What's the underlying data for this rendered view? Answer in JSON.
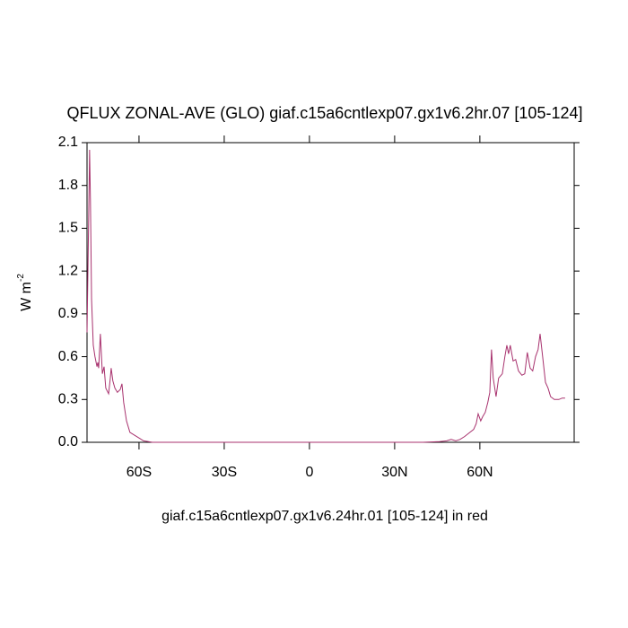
{
  "chart_data": {
    "type": "line",
    "title": "QFLUX ZONAL-AVE (GLO) giaf.c15a6cntlexp07.gx1v6.2hr.07 [105-124]",
    "xlabel": "giaf.c15a6cntlexp07.gx1v6.24hr.01 [105-124] in red",
    "ylabel": {
      "text": "W m",
      "superscript": "-2"
    },
    "xlim": [
      -78.3,
      93.2
    ],
    "ylim": [
      0,
      2.1
    ],
    "xticks": [
      {
        "value": -60,
        "label": "60S"
      },
      {
        "value": -30,
        "label": "30S"
      },
      0,
      {
        "value": 30,
        "label": "30N"
      },
      {
        "value": 60,
        "label": "60N"
      }
    ],
    "yticks": [
      {
        "value": 0,
        "label": "0.0"
      },
      0.3,
      0.6,
      0.9,
      1.2,
      1.5,
      1.8,
      2.1
    ],
    "series": [
      {
        "color": "#a8326e",
        "x": [
          -78.3,
          -77.7,
          -77.4,
          -77.1,
          -76.7,
          -76.1,
          -75.5,
          -74.8,
          -74.5,
          -74.2,
          -73.6,
          -72.9,
          -72.3,
          -71.7,
          -70.7,
          -70.1,
          -69.8,
          -69.2,
          -68.5,
          -67.6,
          -66.6,
          -66.0,
          -65.4,
          -64.4,
          -63.2,
          -61.6,
          -60.0,
          -58.4,
          -55.3,
          -40,
          -20,
          0,
          20,
          40,
          45.8,
          48.3,
          49.9,
          51.5,
          53.0,
          54.6,
          56.5,
          57.8,
          58.7,
          59.4,
          60.3,
          61.0,
          61.9,
          62.8,
          63.5,
          64.1,
          64.7,
          65.7,
          66.6,
          67.9,
          68.8,
          69.5,
          70.1,
          70.7,
          71.7,
          72.6,
          73.6,
          74.8,
          75.8,
          76.7,
          77.7,
          78.6,
          79.6,
          80.5,
          81.2,
          82.1,
          83.1,
          84.0,
          84.9,
          86.2,
          87.8,
          89.0,
          90.0
        ],
        "values": [
          0.77,
          1.6,
          2.05,
          1.7,
          1.0,
          0.68,
          0.6,
          0.53,
          0.56,
          0.52,
          0.76,
          0.48,
          0.53,
          0.38,
          0.34,
          0.45,
          0.52,
          0.43,
          0.38,
          0.35,
          0.37,
          0.41,
          0.28,
          0.15,
          0.07,
          0.05,
          0.03,
          0.01,
          0.0,
          0.0,
          0.0,
          0.0,
          0.0,
          0.0,
          0.005,
          0.01,
          0.02,
          0.01,
          0.02,
          0.04,
          0.07,
          0.09,
          0.13,
          0.2,
          0.15,
          0.18,
          0.21,
          0.28,
          0.35,
          0.65,
          0.45,
          0.32,
          0.45,
          0.48,
          0.6,
          0.68,
          0.62,
          0.68,
          0.57,
          0.58,
          0.5,
          0.47,
          0.48,
          0.63,
          0.52,
          0.5,
          0.6,
          0.65,
          0.76,
          0.6,
          0.42,
          0.38,
          0.32,
          0.3,
          0.3,
          0.31,
          0.31
        ]
      }
    ]
  }
}
